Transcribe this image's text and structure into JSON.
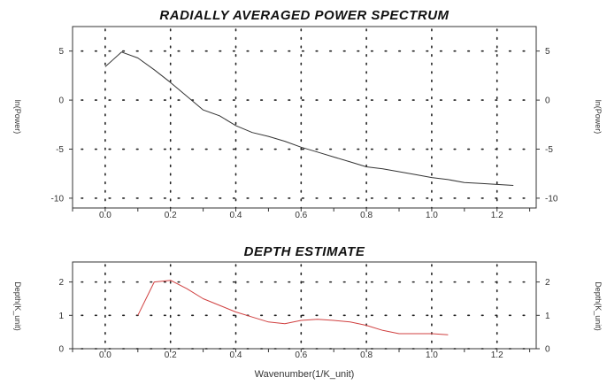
{
  "chart_data": [
    {
      "type": "line",
      "title": "RADIALLY AVERAGED POWER SPECTRUM",
      "xlabel": "",
      "ylabel": "ln(Power)",
      "xlim": [
        -0.1,
        1.32
      ],
      "ylim": [
        -11,
        7.5
      ],
      "x_ticks": [
        "0.0",
        "0.2",
        "0.4",
        "0.6",
        "0.8",
        "1.0",
        "1.2"
      ],
      "y_ticks": [
        "5",
        "0",
        "-5",
        "-10"
      ],
      "grid": "dotted",
      "line_color": "#333333",
      "series": [
        {
          "x": [
            0.0,
            0.05,
            0.1,
            0.15,
            0.2,
            0.25,
            0.3,
            0.35,
            0.4,
            0.45,
            0.5,
            0.55,
            0.6,
            0.65,
            0.7,
            0.75,
            0.8,
            0.85,
            0.9,
            0.95,
            1.0,
            1.05,
            1.1,
            1.15,
            1.2,
            1.25
          ],
          "y": [
            3.4,
            4.9,
            4.3,
            3.1,
            1.8,
            0.4,
            -1.0,
            -1.6,
            -2.6,
            -3.3,
            -3.7,
            -4.2,
            -4.8,
            -5.3,
            -5.8,
            -6.3,
            -6.8,
            -7.0,
            -7.3,
            -7.6,
            -7.9,
            -8.1,
            -8.4,
            -8.5,
            -8.6,
            -8.7
          ]
        }
      ]
    },
    {
      "type": "line",
      "title": "DEPTH ESTIMATE",
      "xlabel": "Wavenumber(1/K_unit)",
      "ylabel": "Depth(K_unit)",
      "xlim": [
        -0.1,
        1.32
      ],
      "ylim": [
        0,
        2.6
      ],
      "x_ticks": [
        "0.0",
        "0.2",
        "0.4",
        "0.6",
        "0.8",
        "1.0",
        "1.2"
      ],
      "y_ticks": [
        "2",
        "1",
        "0"
      ],
      "grid": "dotted",
      "line_color": "#d04040",
      "series": [
        {
          "x": [
            0.1,
            0.15,
            0.2,
            0.25,
            0.3,
            0.35,
            0.4,
            0.45,
            0.5,
            0.55,
            0.6,
            0.65,
            0.7,
            0.75,
            0.8,
            0.85,
            0.9,
            0.95,
            1.0,
            1.05
          ],
          "y": [
            1.0,
            2.0,
            2.05,
            1.8,
            1.5,
            1.3,
            1.1,
            0.95,
            0.8,
            0.75,
            0.85,
            0.88,
            0.85,
            0.8,
            0.7,
            0.55,
            0.45,
            0.45,
            0.45,
            0.42
          ]
        }
      ]
    }
  ]
}
